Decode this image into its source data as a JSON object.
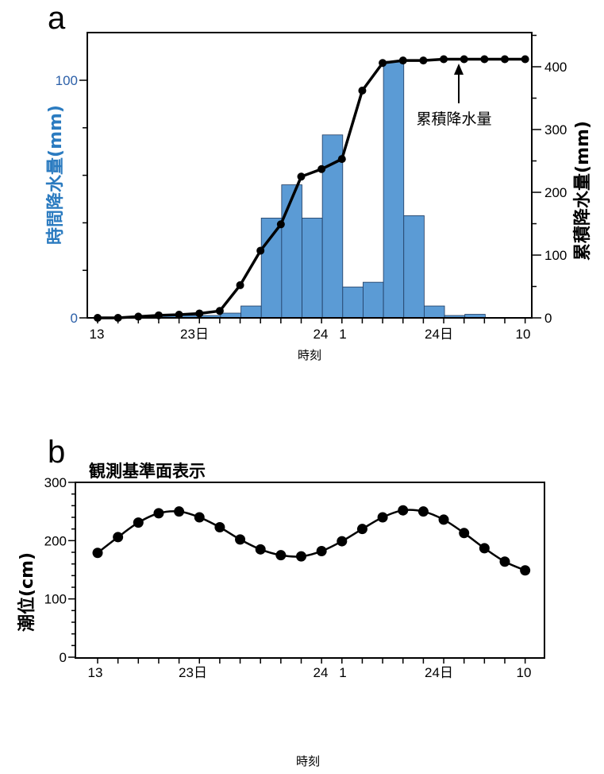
{
  "colors": {
    "bar": "#5b9bd5",
    "bar_stroke": "#1f3a5f",
    "left_axis_label": "#2b7bc0",
    "left_tick_label": "#2b5fa8",
    "line": "#000000"
  },
  "panel_a": {
    "letter": "a",
    "annotation": "累積降水量",
    "xlabel": "時刻",
    "x_tick_labels": [
      "13",
      "23日",
      "24",
      "1",
      "24日",
      "10"
    ]
  },
  "panel_b": {
    "letter": "b",
    "subtitle": "観測基準面表示",
    "xlabel": "時刻",
    "x_tick_labels": [
      "13",
      "23日",
      "24",
      "1",
      "24日",
      "10"
    ]
  },
  "chart_data": [
    {
      "type": "bar",
      "title": "",
      "xlabel": "時刻",
      "ylabel": "時間降水量(mm)",
      "ylabel_right": "累積降水量(mm)",
      "y_ticks_left": [
        0,
        100
      ],
      "y_ticks_right": [
        0,
        100,
        200,
        300,
        400
      ],
      "ylim": [
        0,
        120
      ],
      "ylim_right": [
        0,
        450
      ],
      "x": [
        13,
        14,
        15,
        16,
        17,
        18,
        19,
        20,
        21,
        22,
        23,
        24,
        25,
        26,
        27,
        28,
        29,
        30,
        31,
        32,
        33,
        34
      ],
      "series": [
        {
          "name": "時間降水量",
          "kind": "bar",
          "axis": "left",
          "values": [
            0,
            0,
            0.5,
            1,
            1,
            1,
            2,
            5,
            42,
            56,
            42,
            77,
            13,
            15,
            108,
            43,
            5,
            1,
            1.5,
            0,
            0,
            0
          ]
        },
        {
          "name": "累積降水量",
          "kind": "line",
          "axis": "right",
          "values": [
            0,
            0,
            2,
            4,
            5,
            7,
            11,
            52,
            107,
            149,
            225,
            237,
            253,
            362,
            406,
            410,
            410,
            412,
            412,
            412,
            412,
            412
          ]
        }
      ]
    },
    {
      "type": "line",
      "title": "観測基準面表示",
      "xlabel": "時刻",
      "ylabel": "潮位(cm)",
      "ylim": [
        0,
        300
      ],
      "y_ticks": [
        0,
        100,
        200,
        300
      ],
      "x": [
        13,
        14,
        15,
        16,
        17,
        18,
        19,
        20,
        21,
        22,
        23,
        24,
        25,
        26,
        27,
        28,
        29,
        30,
        31,
        32,
        33,
        34
      ],
      "values": [
        179,
        206,
        231,
        247,
        250,
        240,
        223,
        202,
        185,
        175,
        173,
        182,
        199,
        220,
        240,
        252,
        250,
        236,
        213,
        187,
        164,
        149
      ]
    }
  ]
}
